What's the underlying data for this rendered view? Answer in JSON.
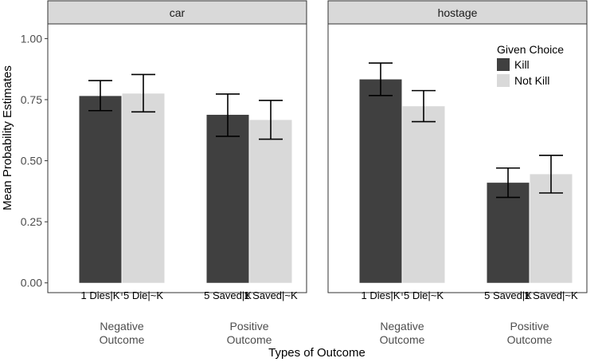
{
  "chart_data": {
    "type": "bar",
    "panels": [
      "car",
      "hostage"
    ],
    "groups": [
      {
        "name": "Negative\nOutcome",
        "line1": "Negative",
        "line2": "Outcome"
      },
      {
        "name": "Positive\nOutcome",
        "line1": "Positive",
        "line2": "Outcome"
      }
    ],
    "series": [
      {
        "name": "Kill",
        "color": "#404040"
      },
      {
        "name": "Not Kill",
        "color": "#d9d9d9"
      }
    ],
    "bars": [
      {
        "panel": "car",
        "group": 0,
        "series": 0,
        "label": "1 Dies|K",
        "value": 0.765,
        "lo": 0.705,
        "hi": 0.828
      },
      {
        "panel": "car",
        "group": 0,
        "series": 1,
        "label": "5 Die|~K",
        "value": 0.775,
        "lo": 0.7,
        "hi": 0.853
      },
      {
        "panel": "car",
        "group": 1,
        "series": 0,
        "label": "5 Saved|K",
        "value": 0.688,
        "lo": 0.6,
        "hi": 0.773
      },
      {
        "panel": "car",
        "group": 1,
        "series": 1,
        "label": "1 Saved|~K",
        "value": 0.667,
        "lo": 0.588,
        "hi": 0.747
      },
      {
        "panel": "hostage",
        "group": 0,
        "series": 0,
        "label": "1 Dies|K",
        "value": 0.833,
        "lo": 0.767,
        "hi": 0.9
      },
      {
        "panel": "hostage",
        "group": 0,
        "series": 1,
        "label": "5 Die|~K",
        "value": 0.723,
        "lo": 0.66,
        "hi": 0.787
      },
      {
        "panel": "hostage",
        "group": 1,
        "series": 0,
        "label": "5 Saved|K",
        "value": 0.41,
        "lo": 0.35,
        "hi": 0.47
      },
      {
        "panel": "hostage",
        "group": 1,
        "series": 1,
        "label": "1 Saved|~K",
        "value": 0.445,
        "lo": 0.368,
        "hi": 0.522
      }
    ],
    "yticks": [
      "0.00",
      "0.25",
      "0.50",
      "0.75",
      "1.00"
    ],
    "ylim": [
      -0.04,
      1.06
    ],
    "xlabel": "Types of Outcome",
    "ylabel": "Mean Probability Estimates",
    "legend": {
      "title": "Given Choice",
      "position": "top-right"
    },
    "grid": false
  }
}
